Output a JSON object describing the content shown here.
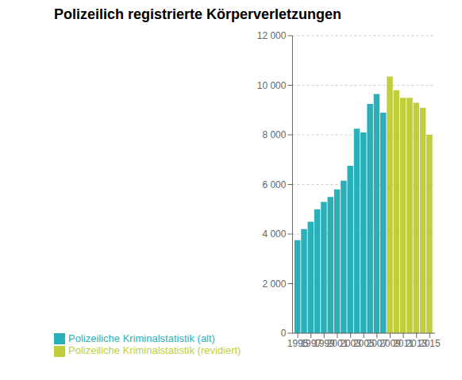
{
  "chart_data": {
    "type": "bar",
    "title": "Polizeilich registrierte Körperverletzungen",
    "x": [
      1995,
      1996,
      1997,
      1998,
      1999,
      2000,
      2001,
      2002,
      2003,
      2004,
      2005,
      2006,
      2007,
      2008,
      2009,
      2010,
      2011,
      2012,
      2013,
      2014,
      2015
    ],
    "series": [
      {
        "name": "Polizeiliche Kriminalstatistik (alt)",
        "color": "#2ab0b8",
        "values": [
          3750,
          4200,
          4500,
          5000,
          5300,
          5500,
          5800,
          6150,
          6750,
          8250,
          8100,
          9250,
          9650,
          8900,
          null,
          null,
          null,
          null,
          null,
          null,
          null
        ]
      },
      {
        "name": "Polizeiliche Kriminalstatistik (revidiert)",
        "color": "#bfce3a",
        "values": [
          null,
          null,
          null,
          null,
          null,
          null,
          null,
          null,
          null,
          null,
          null,
          null,
          null,
          null,
          10350,
          9800,
          9500,
          9500,
          9300,
          9100,
          8000
        ]
      }
    ],
    "xlim": [
      1994.2,
      2015.8
    ],
    "xticks": [
      1995,
      1997,
      1999,
      2001,
      2003,
      2005,
      2007,
      2009,
      2011,
      2013,
      2015
    ],
    "ylim": [
      0,
      12000
    ],
    "yticks": [
      0,
      {
        "value": 2000,
        "label": "2 000"
      },
      {
        "value": 4000,
        "label": "4 000"
      },
      {
        "value": 6000,
        "label": "6 000"
      },
      {
        "value": 8000,
        "label": "8 000"
      },
      {
        "value": 10000,
        "label": "10 000"
      },
      {
        "value": 12000,
        "label": "12 000"
      }
    ],
    "grid": true,
    "legend": "bottom"
  }
}
